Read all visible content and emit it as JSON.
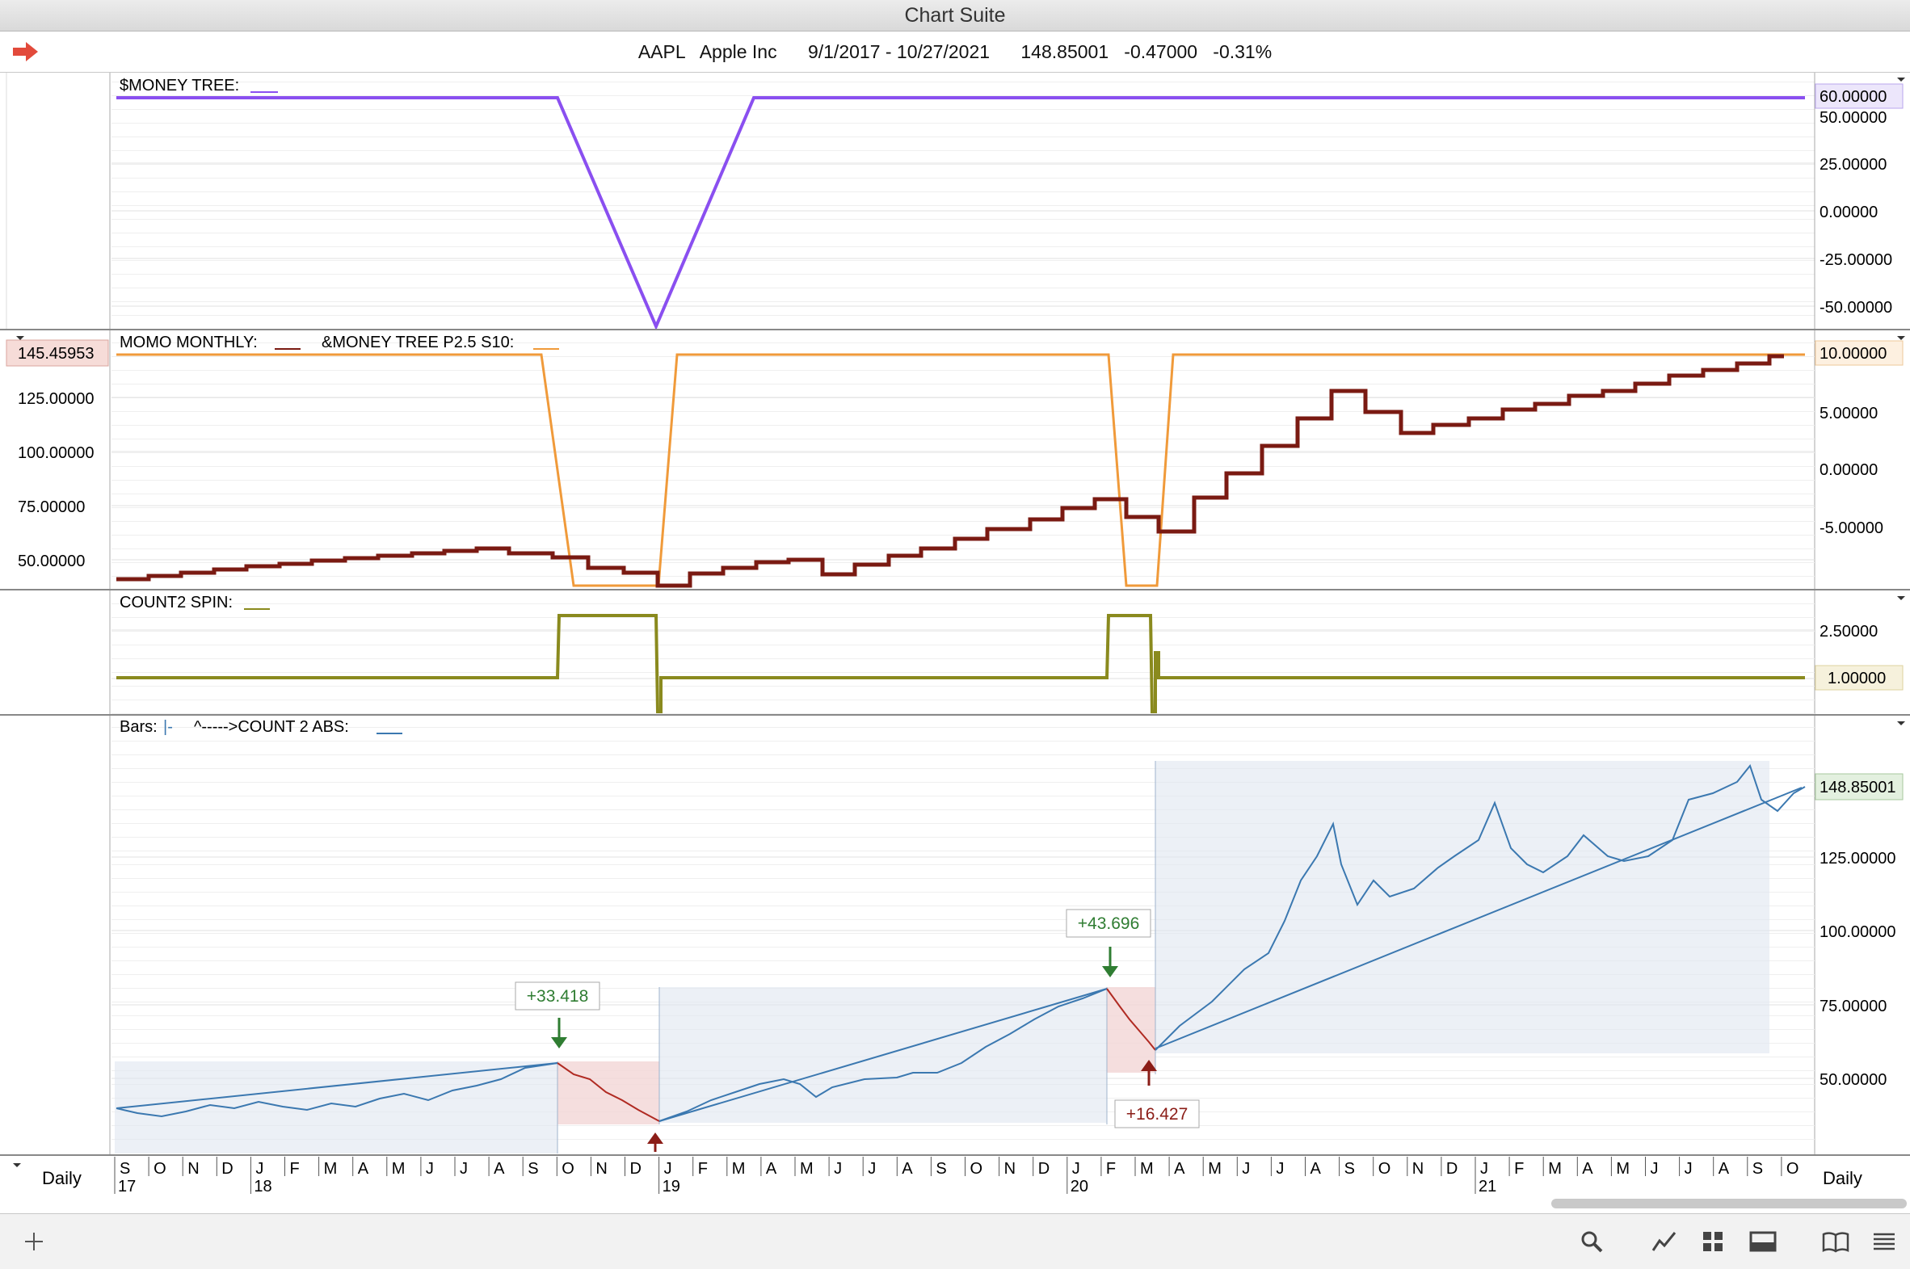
{
  "window": {
    "title": "Chart Suite"
  },
  "info": {
    "symbol": "AAPL",
    "name": "Apple Inc",
    "range": "9/1/2017 - 10/27/2021",
    "last": "148.85001",
    "change": "-0.47000",
    "change_pct": "-0.31%"
  },
  "colors": {
    "purple": "#8a4ff0",
    "orange": "#f09a3a",
    "maroon": "#7a1a12",
    "olive": "#8a8a1e",
    "blue": "#3b78b0",
    "green_label": "#2f7d32",
    "red_label": "#8b1d17"
  },
  "panels": [
    {
      "id": "money-tree",
      "label": "$MONEY TREE:",
      "right_axis": [
        "25.00000",
        "0.00000",
        "-25.00000",
        "-50.00000"
      ],
      "right_badge": "60.00000",
      "right_cut": "50.00000"
    },
    {
      "id": "momo",
      "label": "MOMO MONTHLY:",
      "label2": "&MONEY TREE P2.5 S10:",
      "left_axis": [
        "125.00000",
        "100.00000",
        "75.00000",
        "50.00000"
      ],
      "left_badge": "145.45953",
      "right_axis": [
        "5.00000",
        "0.00000",
        "-5.00000"
      ],
      "right_badge": "10.00000"
    },
    {
      "id": "count2-spin",
      "label": "COUNT2 SPIN:",
      "right_axis": [
        "2.50000"
      ],
      "right_badge": "1.00000"
    },
    {
      "id": "bars",
      "label": "Bars:",
      "label2": "^----->COUNT 2 ABS:",
      "right_axis": [
        "125.00000",
        "100.00000",
        "75.00000",
        "50.00000"
      ],
      "right_badge": "148.85001"
    }
  ],
  "annotations": [
    {
      "text": "+33.418",
      "kind": "up"
    },
    {
      "text": "+43.696",
      "kind": "up"
    },
    {
      "text": "+16.427",
      "kind": "down"
    }
  ],
  "timeaxis": {
    "left_label": "Daily",
    "right_label": "Daily",
    "months": [
      "S",
      "O",
      "N",
      "D",
      "J",
      "F",
      "M",
      "A",
      "M",
      "J",
      "J",
      "A",
      "S",
      "O",
      "N",
      "D",
      "J",
      "F",
      "M",
      "A",
      "M",
      "J",
      "J",
      "A",
      "S",
      "O",
      "N",
      "D",
      "J",
      "F",
      "M",
      "A",
      "M",
      "J",
      "J",
      "A",
      "S",
      "O",
      "N",
      "D",
      "J",
      "F",
      "M",
      "A",
      "M",
      "J",
      "J",
      "A",
      "S",
      "O"
    ],
    "years": [
      {
        "label": "17",
        "month_index": 0
      },
      {
        "label": "18",
        "month_index": 4
      },
      {
        "label": "19",
        "month_index": 16
      },
      {
        "label": "20",
        "month_index": 28
      },
      {
        "label": "21",
        "month_index": 40
      }
    ]
  },
  "toolbar": {
    "add": "add-icon",
    "items": [
      "search-icon",
      "line-chart-icon",
      "grid-icon",
      "panel-icon",
      "book-icon",
      "list-icon"
    ]
  }
}
